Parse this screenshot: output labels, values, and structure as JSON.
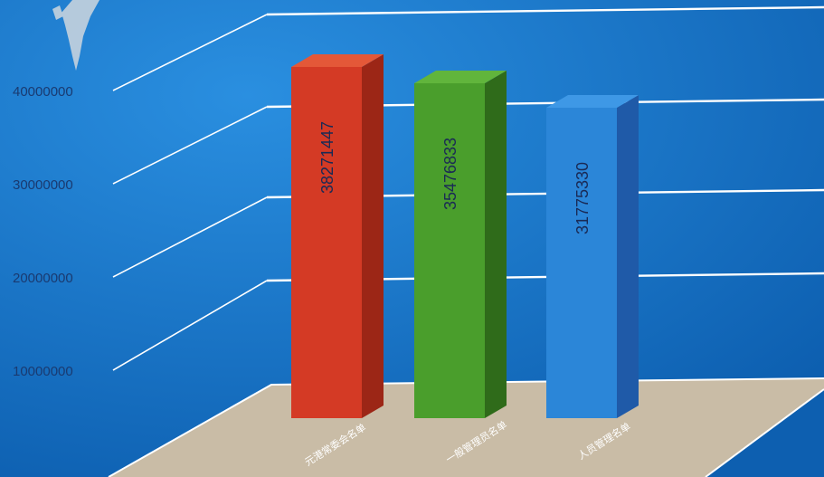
{
  "chart_data": {
    "type": "bar",
    "categories": [
      "元港常委会名单",
      "一般管理员名单",
      "人员管理名单"
    ],
    "values": [
      38271447,
      35476833,
      31775330
    ],
    "value_labels": [
      "38271447",
      "35476833",
      "31775330"
    ],
    "ylim": [
      0,
      40000000
    ],
    "yticks": [
      10000000,
      20000000,
      30000000,
      40000000
    ],
    "ytick_labels": [
      "10000000",
      "20000000",
      "30000000",
      "40000000"
    ],
    "grid": true,
    "legend": "none",
    "colors": {
      "background": "#1a7fd0",
      "floor": "#c9bca6",
      "bars": [
        "#d43a25",
        "#4a9e2c",
        "#2b86d8"
      ],
      "bar_sides": [
        "#9c2616",
        "#2f6b1a",
        "#1f5aa8"
      ],
      "bar_tops": [
        "#e45838",
        "#61b53c",
        "#3e98e6"
      ]
    }
  }
}
